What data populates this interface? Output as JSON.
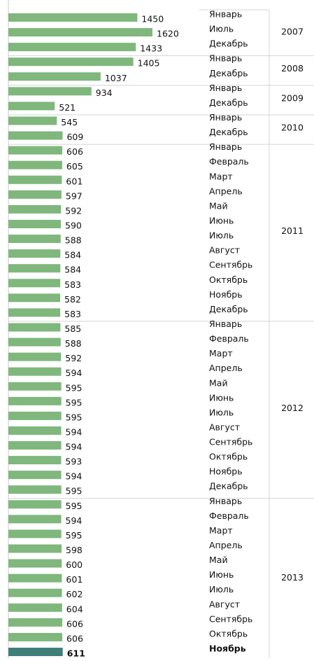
{
  "chart_data": {
    "type": "bar",
    "orientation": "horizontal",
    "color": "#7fb77c",
    "highlight_color": "#3e7f7a",
    "groups": [
      {
        "name": "2007",
        "categories": [
          "Январь",
          "Июль",
          "Декабрь"
        ],
        "values": [
          1450,
          1620,
          1433
        ]
      },
      {
        "name": "2008",
        "categories": [
          "Январь",
          "Декабрь"
        ],
        "values": [
          1405,
          1037
        ]
      },
      {
        "name": "2009",
        "categories": [
          "Январь",
          "Декабрь"
        ],
        "values": [
          934,
          521
        ]
      },
      {
        "name": "2010",
        "categories": [
          "Январь",
          "Декабрь"
        ],
        "values": [
          545,
          609
        ]
      },
      {
        "name": "2011",
        "categories": [
          "Январь",
          "Февраль",
          "Март",
          "Апрель",
          "Май",
          "Июнь",
          "Июль",
          "Август",
          "Сентябрь",
          "Октябрь",
          "Ноябрь",
          "Декабрь"
        ],
        "values": [
          606,
          605,
          601,
          597,
          592,
          590,
          588,
          584,
          584,
          583,
          582,
          583
        ]
      },
      {
        "name": "2012",
        "categories": [
          "Январь",
          "Февраль",
          "Март",
          "Апрель",
          "Май",
          "Июнь",
          "Июль",
          "Август",
          "Сентябрь",
          "Октябрь",
          "Ноябрь",
          "Декабрь"
        ],
        "values": [
          585,
          588,
          592,
          594,
          595,
          595,
          595,
          594,
          594,
          593,
          594,
          595
        ]
      },
      {
        "name": "2013",
        "categories": [
          "Январь",
          "Февраль",
          "Март",
          "Апрель",
          "Май",
          "Июнь",
          "Июль",
          "Август",
          "Сентябрь",
          "Октябрь",
          "Ноябрь"
        ],
        "values": [
          595,
          594,
          595,
          598,
          600,
          601,
          602,
          604,
          606,
          606,
          611
        ],
        "highlight_index": 10
      }
    ]
  }
}
